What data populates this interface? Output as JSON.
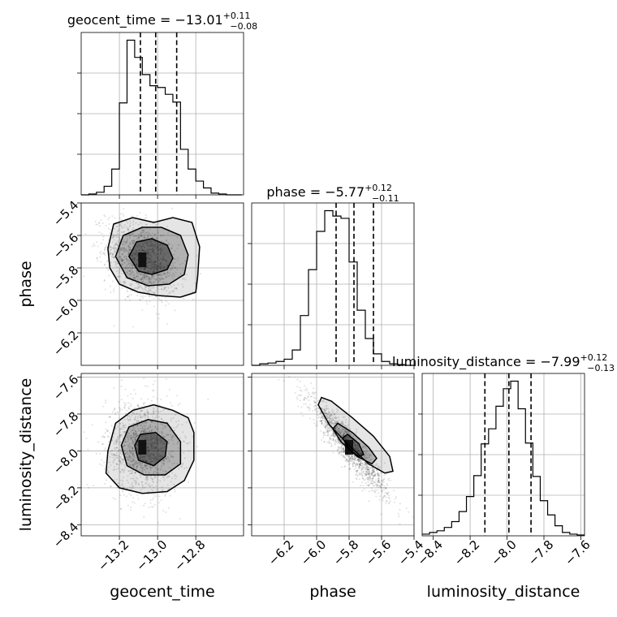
{
  "chart_data": {
    "type": "corner",
    "parameters": [
      "geocent_time",
      "phase",
      "luminosity_distance"
    ],
    "axes": {
      "geocent_time": {
        "label": "geocent_time",
        "range": [
          -13.4,
          -12.55
        ],
        "ticks": [
          -13.2,
          -13.0,
          -12.8
        ],
        "tick_labels": [
          "−13.2",
          "−13.0",
          "−12.8"
        ]
      },
      "phase": {
        "label": "phase",
        "range": [
          -6.4,
          -5.4
        ],
        "ticks": [
          -6.2,
          -6.0,
          -5.8,
          -5.6,
          -5.4
        ],
        "tick_labels": [
          "−6.2",
          "−6.0",
          "−5.8",
          "−5.6",
          "−5.4"
        ]
      },
      "luminosity_distance": {
        "label": "luminosity_distance",
        "range": [
          -8.46,
          -7.58
        ],
        "ticks": [
          -8.4,
          -8.2,
          -8.0,
          -7.8,
          -7.6
        ],
        "tick_labels": [
          "−8.4",
          "−8.2",
          "−8.0",
          "−7.8",
          "−7.6"
        ]
      }
    },
    "marginals": [
      {
        "parameter": "geocent_time",
        "title": {
          "base": "geocent_time = −13.01",
          "sup": "+0.11",
          "sub": "−0.08"
        },
        "bin_edges": [
          -13.4,
          -13.36,
          -13.32,
          -13.28,
          -13.24,
          -13.2,
          -13.16,
          -13.12,
          -13.08,
          -13.04,
          -13.0,
          -12.96,
          -12.92,
          -12.88,
          -12.84,
          -12.8,
          -12.76,
          -12.72,
          -12.68,
          -12.64,
          -12.6,
          -12.56
        ],
        "counts": [
          0,
          1,
          3,
          10,
          30,
          107,
          180,
          160,
          140,
          127,
          125,
          117,
          108,
          53,
          30,
          16,
          8,
          2,
          1,
          0,
          0
        ],
        "quantiles": [
          -13.09,
          -13.01,
          -12.9
        ]
      },
      {
        "parameter": "phase",
        "title": {
          "base": "phase = −5.77",
          "sup": "+0.12",
          "sub": "−0.11"
        },
        "bin_edges": [
          -6.4,
          -6.35,
          -6.3,
          -6.25,
          -6.2,
          -6.15,
          -6.1,
          -6.05,
          -6.0,
          -5.95,
          -5.9,
          -5.85,
          -5.8,
          -5.75,
          -5.7,
          -5.65,
          -5.6,
          -5.55,
          -5.5,
          -5.45,
          -5.4
        ],
        "counts": [
          0,
          2,
          3,
          5,
          8,
          20,
          65,
          125,
          175,
          202,
          195,
          192,
          135,
          72,
          35,
          15,
          5,
          2,
          1,
          0
        ],
        "quantiles": [
          -5.88,
          -5.77,
          -5.65
        ]
      },
      {
        "parameter": "luminosity_distance",
        "title": {
          "base": "luminosity_distance = −7.99",
          "sup": "+0.12",
          "sub": "−0.13"
        },
        "bin_edges": [
          -8.46,
          -8.42,
          -8.38,
          -8.34,
          -8.3,
          -8.26,
          -8.22,
          -8.18,
          -8.14,
          -8.1,
          -8.06,
          -8.02,
          -7.98,
          -7.94,
          -7.9,
          -7.86,
          -7.82,
          -7.78,
          -7.74,
          -7.7,
          -7.66,
          -7.62,
          -7.58
        ],
        "counts": [
          2,
          4,
          6,
          10,
          17,
          29,
          47,
          72,
          110,
          128,
          155,
          176,
          185,
          152,
          111,
          71,
          42,
          25,
          12,
          4,
          2,
          1
        ],
        "quantiles": [
          -8.12,
          -7.99,
          -7.87
        ]
      }
    ],
    "joint": [
      {
        "x": "geocent_time",
        "y": "phase",
        "peak": [
          -13.08,
          -5.75
        ],
        "contours": [
          [
            [
              -13.15,
              -5.73
            ],
            [
              -13.11,
              -5.64
            ],
            [
              -13.03,
              -5.62
            ],
            [
              -12.95,
              -5.66
            ],
            [
              -12.92,
              -5.74
            ],
            [
              -12.95,
              -5.81
            ],
            [
              -13.03,
              -5.84
            ],
            [
              -13.1,
              -5.82
            ]
          ],
          [
            [
              -13.22,
              -5.73
            ],
            [
              -13.18,
              -5.6
            ],
            [
              -13.08,
              -5.55
            ],
            [
              -12.98,
              -5.55
            ],
            [
              -12.88,
              -5.6
            ],
            [
              -12.84,
              -5.72
            ],
            [
              -12.86,
              -5.84
            ],
            [
              -12.94,
              -5.9
            ],
            [
              -13.05,
              -5.91
            ],
            [
              -13.16,
              -5.86
            ]
          ],
          [
            [
              -13.26,
              -5.68
            ],
            [
              -13.23,
              -5.53
            ],
            [
              -13.13,
              -5.49
            ],
            [
              -13.02,
              -5.52
            ],
            [
              -12.92,
              -5.49
            ],
            [
              -12.82,
              -5.52
            ],
            [
              -12.78,
              -5.67
            ],
            [
              -12.79,
              -5.85
            ],
            [
              -12.8,
              -5.95
            ],
            [
              -12.88,
              -5.98
            ],
            [
              -13.0,
              -5.97
            ],
            [
              -13.1,
              -5.95
            ],
            [
              -13.2,
              -5.9
            ],
            [
              -13.25,
              -5.8
            ]
          ]
        ]
      },
      {
        "x": "geocent_time",
        "y": "luminosity_distance",
        "peak": [
          -13.08,
          -7.98
        ],
        "contours": [
          [
            [
              -13.12,
              -7.97
            ],
            [
              -13.09,
              -7.91
            ],
            [
              -13.01,
              -7.9
            ],
            [
              -12.95,
              -7.95
            ],
            [
              -12.96,
              -8.03
            ],
            [
              -13.02,
              -8.08
            ],
            [
              -13.1,
              -8.05
            ]
          ],
          [
            [
              -13.19,
              -7.97
            ],
            [
              -13.15,
              -7.87
            ],
            [
              -13.05,
              -7.83
            ],
            [
              -12.95,
              -7.85
            ],
            [
              -12.88,
              -7.95
            ],
            [
              -12.88,
              -8.07
            ],
            [
              -12.96,
              -8.13
            ],
            [
              -13.07,
              -8.13
            ],
            [
              -13.16,
              -8.08
            ]
          ],
          [
            [
              -13.26,
              -8.0
            ],
            [
              -13.22,
              -7.85
            ],
            [
              -13.13,
              -7.78
            ],
            [
              -13.02,
              -7.75
            ],
            [
              -12.92,
              -7.78
            ],
            [
              -12.84,
              -7.82
            ],
            [
              -12.81,
              -7.9
            ],
            [
              -12.81,
              -8.05
            ],
            [
              -12.86,
              -8.16
            ],
            [
              -12.95,
              -8.22
            ],
            [
              -13.08,
              -8.23
            ],
            [
              -13.2,
              -8.2
            ],
            [
              -13.27,
              -8.12
            ]
          ]
        ]
      },
      {
        "x": "phase",
        "y": "luminosity_distance",
        "peak": [
          -5.8,
          -7.98
        ],
        "contours": [
          [
            [
              -5.84,
              -7.93
            ],
            [
              -5.81,
              -7.91
            ],
            [
              -5.74,
              -7.96
            ],
            [
              -5.71,
              -8.02
            ],
            [
              -5.74,
              -8.03
            ],
            [
              -5.8,
              -7.99
            ]
          ],
          [
            [
              -5.9,
              -7.88
            ],
            [
              -5.87,
              -7.85
            ],
            [
              -5.78,
              -7.9
            ],
            [
              -5.68,
              -7.98
            ],
            [
              -5.63,
              -8.04
            ],
            [
              -5.66,
              -8.07
            ],
            [
              -5.75,
              -8.03
            ],
            [
              -5.85,
              -7.95
            ]
          ],
          [
            [
              -5.99,
              -7.75
            ],
            [
              -5.97,
              -7.71
            ],
            [
              -5.91,
              -7.73
            ],
            [
              -5.78,
              -7.82
            ],
            [
              -5.65,
              -7.92
            ],
            [
              -5.55,
              -8.03
            ],
            [
              -5.53,
              -8.11
            ],
            [
              -5.58,
              -8.12
            ],
            [
              -5.68,
              -8.07
            ],
            [
              -5.8,
              -7.97
            ],
            [
              -5.92,
              -7.86
            ]
          ]
        ]
      }
    ]
  }
}
